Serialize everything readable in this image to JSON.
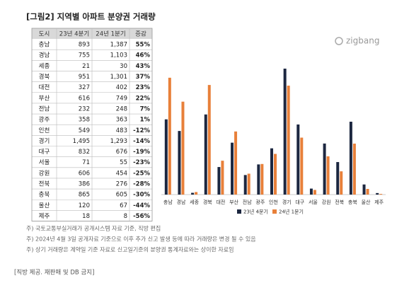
{
  "header": {
    "title": "[그림2] 지역별 아파트 분양권 거래량"
  },
  "logo": "zigbang",
  "table": {
    "columns": [
      "도시",
      "23년 4분기",
      "24년 1분기",
      "증감"
    ],
    "rows": [
      [
        "충남",
        "893",
        "1,387",
        "55%"
      ],
      [
        "경남",
        "755",
        "1,103",
        "46%"
      ],
      [
        "세종",
        "21",
        "30",
        "43%"
      ],
      [
        "경북",
        "951",
        "1,301",
        "37%"
      ],
      [
        "대전",
        "327",
        "402",
        "23%"
      ],
      [
        "부산",
        "616",
        "749",
        "22%"
      ],
      [
        "전남",
        "232",
        "248",
        "7%"
      ],
      [
        "광주",
        "358",
        "363",
        "1%"
      ],
      [
        "인천",
        "549",
        "483",
        "-12%"
      ],
      [
        "경기",
        "1,495",
        "1,293",
        "-14%"
      ],
      [
        "대구",
        "832",
        "676",
        "-19%"
      ],
      [
        "서울",
        "71",
        "55",
        "-23%"
      ],
      [
        "강원",
        "606",
        "454",
        "-25%"
      ],
      [
        "전북",
        "386",
        "276",
        "-28%"
      ],
      [
        "충북",
        "865",
        "605",
        "-30%"
      ],
      [
        "울산",
        "120",
        "67",
        "-44%"
      ],
      [
        "제주",
        "18",
        "8",
        "-56%"
      ]
    ]
  },
  "chart_data": {
    "type": "bar",
    "categories": [
      "충남",
      "경남",
      "세종",
      "경북",
      "대전",
      "부산",
      "전남",
      "광주",
      "인천",
      "경기",
      "대구",
      "서울",
      "강원",
      "전북",
      "충북",
      "울산",
      "제주"
    ],
    "series": [
      {
        "name": "23년 4분기",
        "color": "#1c2740",
        "values": [
          893,
          755,
          21,
          951,
          327,
          616,
          232,
          358,
          549,
          1495,
          832,
          71,
          606,
          386,
          865,
          120,
          18
        ]
      },
      {
        "name": "24년 1분기",
        "color": "#e8803a",
        "values": [
          1387,
          1103,
          30,
          1301,
          402,
          749,
          248,
          363,
          483,
          1293,
          676,
          55,
          454,
          276,
          605,
          67,
          8
        ]
      }
    ]
  },
  "notes": [
    "주) 국토교통부실거래가 공개시스템 자료 기준, 직방 편집",
    "주) 2024년 4월 3일 공개자료 기준으로 이후 추가 신고 발생 등에 따라 거래량은 변경 될 수 있음",
    "주) 상기 거래량은 계약일 기준 자료로 신고일기준의 분양권 통계자료와는 상이한 자료임"
  ],
  "footer": "[직방 제공. 재판매 및 DB 금지]"
}
